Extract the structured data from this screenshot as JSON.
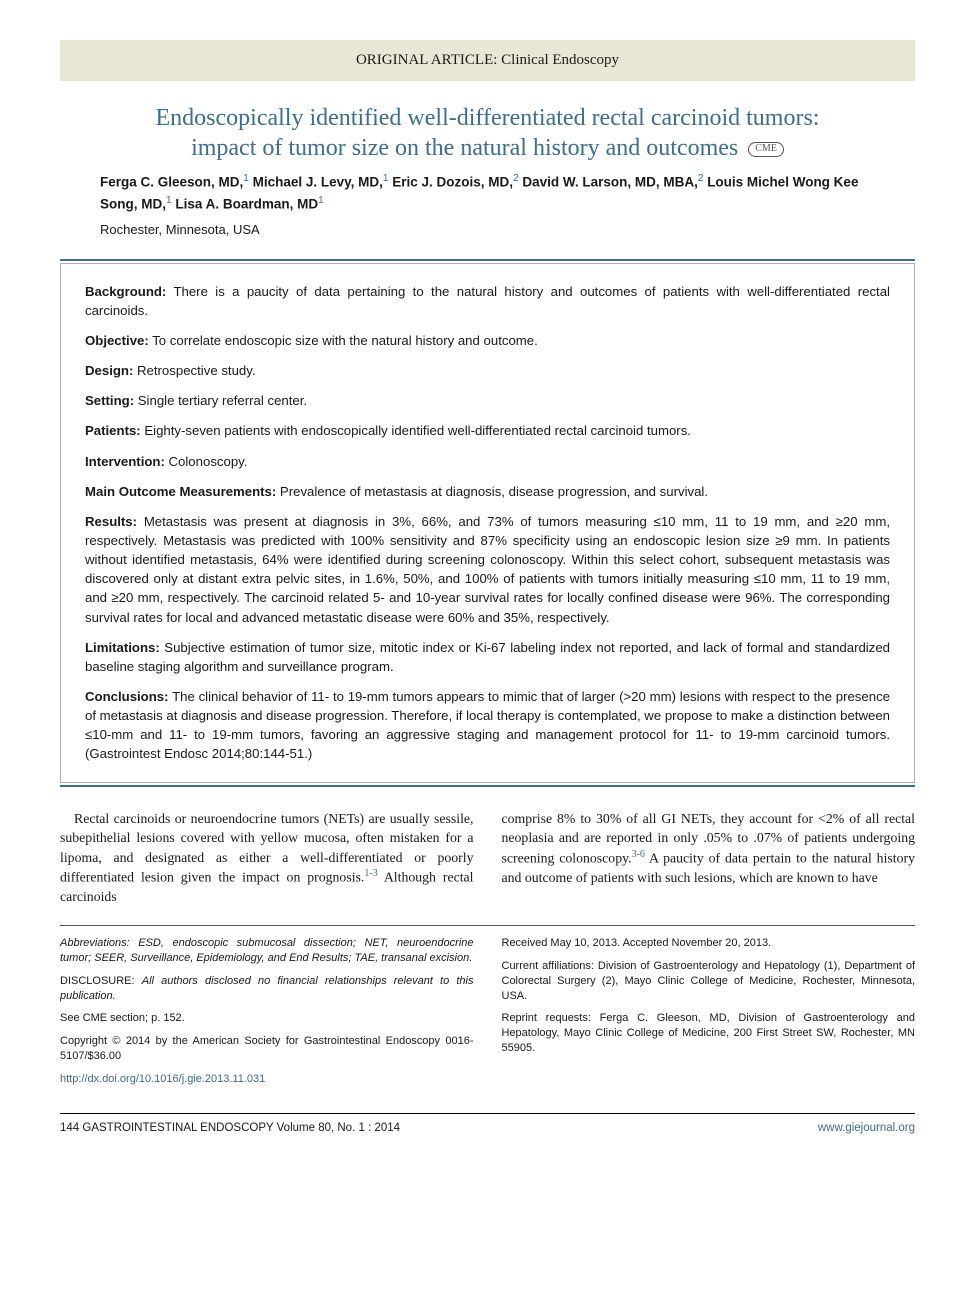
{
  "header": {
    "category": "ORIGINAL ARTICLE: Clinical Endoscopy"
  },
  "title": {
    "line1": "Endoscopically identified well-differentiated rectal carcinoid tumors:",
    "line2": "impact of tumor size on the natural history and outcomes",
    "cme": "CME"
  },
  "authors": {
    "list_html": "Ferga C. Gleeson, MD,<sup>1</sup> Michael J. Levy, MD,<sup>1</sup> Eric J. Dozois, MD,<sup>2</sup> David W. Larson, MD, MBA,<sup>2</sup> Louis Michel Wong Kee Song, MD,<sup>1</sup> Lisa A. Boardman, MD<sup>1</sup>",
    "a1": "Ferga C. Gleeson, MD,",
    "a2": "Michael J. Levy, MD,",
    "a3": "Eric J. Dozois, MD,",
    "a4": "David W. Larson, MD, MBA,",
    "a5": "Louis Michel Wong Kee Song, MD,",
    "a6": "Lisa A. Boardman, MD"
  },
  "location": "Rochester, Minnesota, USA",
  "abstract": {
    "background_label": "Background:",
    "background": " There is a paucity of data pertaining to the natural history and outcomes of patients with well-differentiated rectal carcinoids.",
    "objective_label": "Objective:",
    "objective": " To correlate endoscopic size with the natural history and outcome.",
    "design_label": "Design:",
    "design": " Retrospective study.",
    "setting_label": "Setting:",
    "setting": " Single tertiary referral center.",
    "patients_label": "Patients:",
    "patients": " Eighty-seven patients with endoscopically identified well-differentiated rectal carcinoid tumors.",
    "intervention_label": "Intervention:",
    "intervention": " Colonoscopy.",
    "mom_label": "Main Outcome Measurements:",
    "mom": " Prevalence of metastasis at diagnosis, disease progression, and survival.",
    "results_label": "Results:",
    "results": " Metastasis was present at diagnosis in 3%, 66%, and 73% of tumors measuring ≤10 mm, 11 to 19 mm, and ≥20 mm, respectively. Metastasis was predicted with 100% sensitivity and 87% specificity using an endoscopic lesion size ≥9 mm. In patients without identified metastasis, 64% were identified during screening colonoscopy. Within this select cohort, subsequent metastasis was discovered only at distant extra pelvic sites, in 1.6%, 50%, and 100% of patients with tumors initially measuring ≤10 mm, 11 to 19 mm, and ≥20 mm, respectively. The carcinoid related 5- and 10-year survival rates for locally confined disease were 96%. The corresponding survival rates for local and advanced metastatic disease were 60% and 35%, respectively.",
    "limitations_label": "Limitations:",
    "limitations": " Subjective estimation of tumor size, mitotic index or Ki-67 labeling index not reported, and lack of formal and standardized baseline staging algorithm and surveillance program.",
    "conclusions_label": "Conclusions:",
    "conclusions": " The clinical behavior of 11- to 19-mm tumors appears to mimic that of larger (>20 mm) lesions with respect to the presence of metastasis at diagnosis and disease progression. Therefore, if local therapy is contemplated, we propose to make a distinction between ≤10-mm and 11- to 19-mm tumors, favoring an aggressive staging and management protocol for 11- to 19-mm carcinoid tumors. (Gastrointest Endosc 2014;80:144-51.)"
  },
  "body": {
    "col1_pre": "Rectal carcinoids or neuroendocrine tumors (NETs) are usually sessile, subepithelial lesions covered with yellow mucosa, often mistaken for a lipoma, and designated as either a well-differentiated or poorly differentiated lesion given the impact on prognosis.",
    "col1_ref": "1-3",
    "col1_post": " Although rectal carcinoids",
    "col2_pre": "comprise 8% to 30% of all GI NETs, they account for <2% of all rectal neoplasia and are reported in only .05% to .07% of patients undergoing screening colonoscopy.",
    "col2_ref": "3-6",
    "col2_post": " A paucity of data pertain to the natural history and outcome of patients with such lesions, which are known to have"
  },
  "footer": {
    "left": {
      "abbrev": "Abbreviations: ESD, endoscopic submucosal dissection; NET, neuroendocrine tumor; SEER, Surveillance, Epidemiology, and End Results; TAE, transanal excision.",
      "disclosure_label": "DISCLOSURE: ",
      "disclosure": "All authors disclosed no financial relationships relevant to this publication.",
      "cme": "See CME section; p. 152.",
      "copyright": "Copyright © 2014 by the American Society for Gastrointestinal Endoscopy 0016-5107/$36.00",
      "doi": "http://dx.doi.org/10.1016/j.gie.2013.11.031"
    },
    "right": {
      "received": "Received May 10, 2013. Accepted November 20, 2013.",
      "affiliations": "Current affiliations: Division of Gastroenterology and Hepatology (1), Department of Colorectal Surgery (2), Mayo Clinic College of Medicine, Rochester, Minnesota, USA.",
      "reprint": "Reprint requests: Ferga C. Gleeson, MD, Division of Gastroenterology and Hepatology, Mayo Clinic College of Medicine, 200 First Street SW, Rochester, MN 55905."
    }
  },
  "pagefoot": {
    "left_page": "144",
    "left_journal": "  GASTROINTESTINAL ENDOSCOPY  Volume 80, No. 1 : 2014",
    "right": "www.giejournal.org"
  },
  "colors": {
    "accent": "#3b6e8f",
    "header_bg": "#e8e6d4",
    "text": "#1a1a1a"
  }
}
